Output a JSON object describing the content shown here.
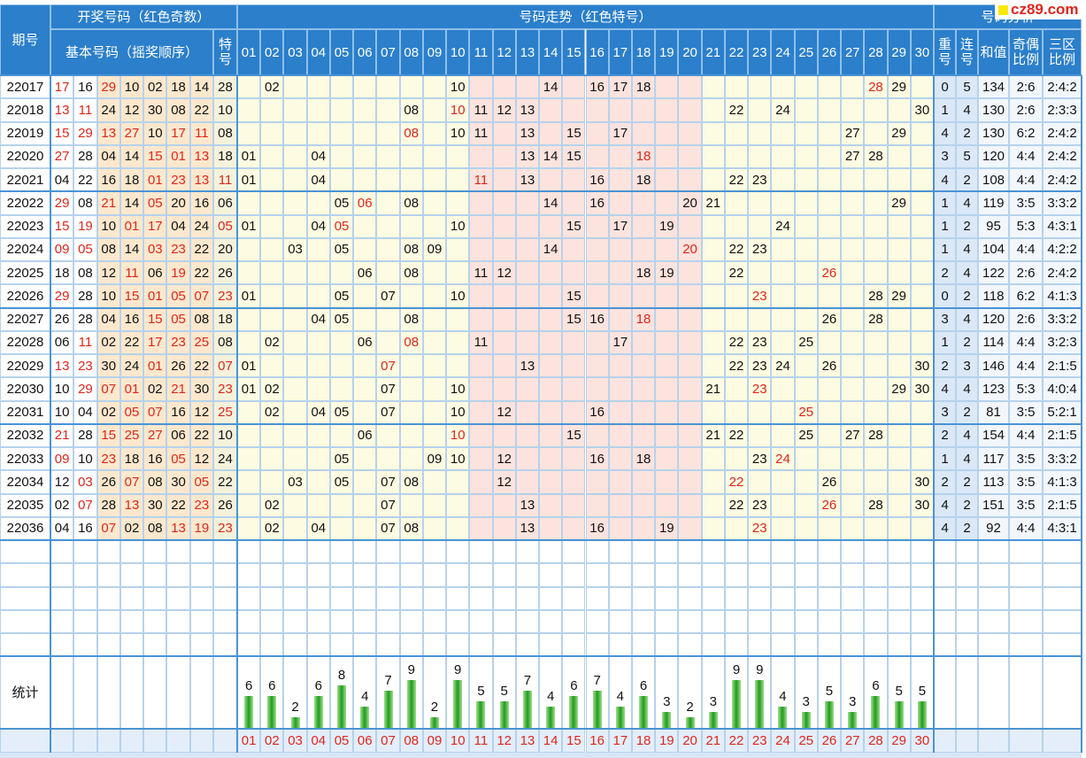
{
  "header": {
    "period": "期号",
    "draw": "开奖号码（红色奇数）",
    "basic": "基本号码（摇奖顺序）",
    "special": "特号",
    "trend": "号码走势（红色特号）",
    "analysis": "号码分析",
    "analysis_cols": [
      "重号",
      "连号",
      "和值",
      "奇偶比例",
      "三区比例"
    ]
  },
  "logo": "cz89.com",
  "trend_columns": [
    "01",
    "02",
    "03",
    "04",
    "05",
    "06",
    "07",
    "08",
    "09",
    "10",
    "11",
    "12",
    "13",
    "14",
    "15",
    "16",
    "17",
    "18",
    "19",
    "20",
    "21",
    "22",
    "23",
    "24",
    "25",
    "26",
    "27",
    "28",
    "29",
    "30"
  ],
  "rows": [
    {
      "period": "22017",
      "numbers": [
        "17",
        "16",
        "29",
        "10",
        "02",
        "18",
        "14"
      ],
      "special": "28",
      "repeat": 0,
      "consecutive": 5,
      "sum": 134,
      "odd_even": "2:6",
      "zones": "2:4:2"
    },
    {
      "period": "22018",
      "numbers": [
        "13",
        "11",
        "24",
        "12",
        "30",
        "08",
        "22"
      ],
      "special": "10",
      "repeat": 1,
      "consecutive": 4,
      "sum": 130,
      "odd_even": "2:6",
      "zones": "2:3:3"
    },
    {
      "period": "22019",
      "numbers": [
        "15",
        "29",
        "13",
        "27",
        "10",
        "17",
        "11"
      ],
      "special": "08",
      "repeat": 4,
      "consecutive": 2,
      "sum": 130,
      "odd_even": "6:2",
      "zones": "2:4:2"
    },
    {
      "period": "22020",
      "numbers": [
        "27",
        "28",
        "04",
        "14",
        "15",
        "01",
        "13"
      ],
      "special": "18",
      "repeat": 3,
      "consecutive": 5,
      "sum": 120,
      "odd_even": "4:4",
      "zones": "2:4:2"
    },
    {
      "period": "22021",
      "numbers": [
        "04",
        "22",
        "16",
        "18",
        "01",
        "23",
        "13"
      ],
      "special": "11",
      "repeat": 4,
      "consecutive": 2,
      "sum": 108,
      "odd_even": "4:4",
      "zones": "2:4:2"
    },
    {
      "period": "22022",
      "numbers": [
        "29",
        "08",
        "21",
        "14",
        "05",
        "20",
        "16"
      ],
      "special": "06",
      "repeat": 1,
      "consecutive": 4,
      "sum": 119,
      "odd_even": "3:5",
      "zones": "3:3:2"
    },
    {
      "period": "22023",
      "numbers": [
        "15",
        "19",
        "10",
        "01",
        "17",
        "04",
        "24"
      ],
      "special": "05",
      "repeat": 1,
      "consecutive": 2,
      "sum": 95,
      "odd_even": "5:3",
      "zones": "4:3:1"
    },
    {
      "period": "22024",
      "numbers": [
        "09",
        "05",
        "08",
        "14",
        "03",
        "23",
        "22"
      ],
      "special": "20",
      "repeat": 1,
      "consecutive": 4,
      "sum": 104,
      "odd_even": "4:4",
      "zones": "4:2:2"
    },
    {
      "period": "22025",
      "numbers": [
        "18",
        "08",
        "12",
        "11",
        "06",
        "19",
        "22"
      ],
      "special": "26",
      "repeat": 2,
      "consecutive": 4,
      "sum": 122,
      "odd_even": "2:6",
      "zones": "2:4:2"
    },
    {
      "period": "22026",
      "numbers": [
        "29",
        "28",
        "10",
        "15",
        "01",
        "05",
        "07"
      ],
      "special": "23",
      "repeat": 0,
      "consecutive": 2,
      "sum": 118,
      "odd_even": "6:2",
      "zones": "4:1:3"
    },
    {
      "period": "22027",
      "numbers": [
        "26",
        "28",
        "04",
        "16",
        "15",
        "05",
        "08"
      ],
      "special": "18",
      "repeat": 3,
      "consecutive": 4,
      "sum": 120,
      "odd_even": "2:6",
      "zones": "3:3:2"
    },
    {
      "period": "22028",
      "numbers": [
        "06",
        "11",
        "02",
        "22",
        "17",
        "23",
        "25"
      ],
      "special": "08",
      "repeat": 1,
      "consecutive": 2,
      "sum": 114,
      "odd_even": "4:4",
      "zones": "3:2:3"
    },
    {
      "period": "22029",
      "numbers": [
        "13",
        "23",
        "30",
        "24",
        "01",
        "26",
        "22"
      ],
      "special": "07",
      "repeat": 2,
      "consecutive": 3,
      "sum": 146,
      "odd_even": "4:4",
      "zones": "2:1:5"
    },
    {
      "period": "22030",
      "numbers": [
        "10",
        "29",
        "07",
        "01",
        "02",
        "21",
        "30"
      ],
      "special": "23",
      "repeat": 4,
      "consecutive": 4,
      "sum": 123,
      "odd_even": "5:3",
      "zones": "4:0:4"
    },
    {
      "period": "22031",
      "numbers": [
        "10",
        "04",
        "02",
        "05",
        "07",
        "16",
        "12"
      ],
      "special": "25",
      "repeat": 3,
      "consecutive": 2,
      "sum": 81,
      "odd_even": "3:5",
      "zones": "5:2:1"
    },
    {
      "period": "22032",
      "numbers": [
        "21",
        "28",
        "15",
        "25",
        "27",
        "06",
        "22"
      ],
      "special": "10",
      "repeat": 2,
      "consecutive": 4,
      "sum": 154,
      "odd_even": "4:4",
      "zones": "2:1:5"
    },
    {
      "period": "22033",
      "numbers": [
        "09",
        "10",
        "23",
        "18",
        "16",
        "05",
        "12"
      ],
      "special": "24",
      "repeat": 1,
      "consecutive": 4,
      "sum": 117,
      "odd_even": "3:5",
      "zones": "3:3:2"
    },
    {
      "period": "22034",
      "numbers": [
        "12",
        "03",
        "26",
        "07",
        "08",
        "30",
        "05"
      ],
      "special": "22",
      "repeat": 2,
      "consecutive": 2,
      "sum": 113,
      "odd_even": "3:5",
      "zones": "4:1:3"
    },
    {
      "period": "22035",
      "numbers": [
        "02",
        "07",
        "28",
        "13",
        "30",
        "22",
        "23"
      ],
      "special": "26",
      "repeat": 4,
      "consecutive": 2,
      "sum": 151,
      "odd_even": "3:5",
      "zones": "2:1:5"
    },
    {
      "period": "22036",
      "numbers": [
        "04",
        "16",
        "07",
        "02",
        "08",
        "13",
        "19"
      ],
      "special": "23",
      "repeat": 4,
      "consecutive": 2,
      "sum": 92,
      "odd_even": "4:4",
      "zones": "4:3:1"
    }
  ],
  "stats": {
    "label": "统计",
    "counts": [
      6,
      6,
      2,
      6,
      8,
      4,
      7,
      9,
      2,
      9,
      5,
      5,
      7,
      4,
      6,
      7,
      4,
      6,
      3,
      2,
      3,
      9,
      9,
      4,
      3,
      5,
      3,
      6,
      5,
      5
    ]
  }
}
